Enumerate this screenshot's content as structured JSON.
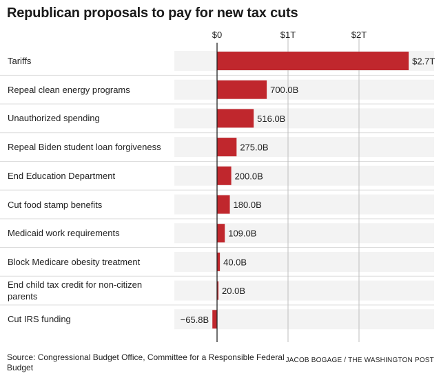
{
  "title": "Republican proposals to pay for new tax cuts",
  "source": "Source: Congressional Budget Office, Committee for a Responsible Federal Budget",
  "credit": "JACOB BOGAGE / THE WASHINGTON POST",
  "colors": {
    "bar": "#c0272d",
    "row_band": "#f3f3f3",
    "gridline": "#bdbdbd",
    "zero_line": "#222222"
  },
  "chart_data": {
    "type": "bar",
    "orientation": "horizontal",
    "title": "Republican proposals to pay for new tax cuts",
    "unit": "billions of dollars",
    "categories": [
      "Tariffs",
      "Repeal clean energy programs",
      "Unauthorized spending",
      "Repeal Biden student loan forgiveness",
      "End Education Department",
      "Cut food stamp benefits",
      "Medicaid work requirements",
      "Block Medicare obesity treatment",
      "End child tax credit for non-citizen parents",
      "Cut IRS funding"
    ],
    "values": [
      2700,
      700,
      516,
      275,
      200,
      180,
      109,
      40,
      20,
      -65.8
    ],
    "value_labels": [
      "$2.7T",
      "700.0B",
      "516.0B",
      "275.0B",
      "200.0B",
      "180.0B",
      "109.0B",
      "40.0B",
      "20.0B",
      "−65.8B"
    ],
    "x_ticks": [
      0,
      1000,
      2000
    ],
    "x_tick_labels": [
      "$0",
      "$1T",
      "$2T"
    ],
    "xlim": [
      -600,
      3050
    ],
    "grid": true,
    "legend": "none"
  }
}
